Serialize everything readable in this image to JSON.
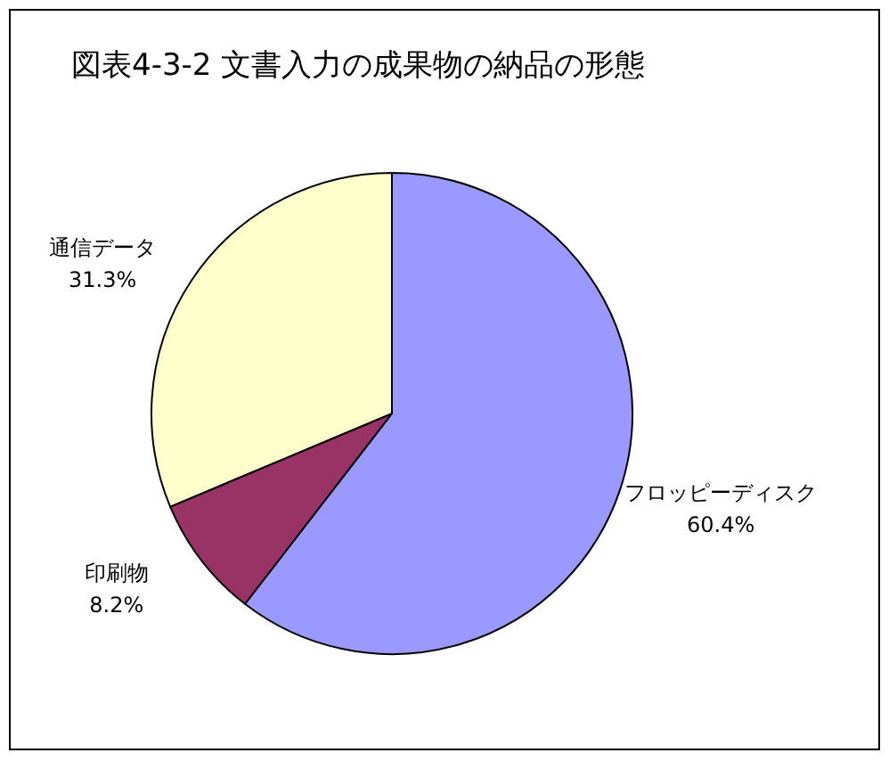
{
  "chart_data": {
    "type": "pie",
    "title": "図表4-3-2  文書入力の成果物の納品の形態",
    "categories": [
      "フロッピーディスク",
      "印刷物",
      "通信データ"
    ],
    "values": [
      60.4,
      8.2,
      31.3
    ],
    "value_labels": [
      "60.4%",
      "8.2%",
      "31.3%"
    ],
    "colors": [
      "#9999ff",
      "#993366",
      "#ffffcc"
    ],
    "legend": false
  }
}
